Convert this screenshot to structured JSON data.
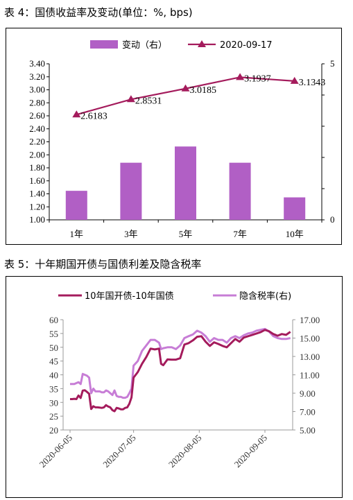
{
  "captions": {
    "table4": "表 4：国债收益率及变动(单位：%, bps)",
    "table5": "表 5：十年期国开债与国债利差及隐含税率"
  },
  "colors": {
    "bar": "#b15fc5",
    "line1": "#a41b5c",
    "line2": "#c77dd6",
    "axis": "#000000"
  },
  "chart_data": [
    {
      "type": "bar",
      "categories": [
        "1年",
        "3年",
        "5年",
        "7年",
        "10年"
      ],
      "series": [
        {
          "name": "变动（右）",
          "type": "bar",
          "axis": "right",
          "values": [
            0.93,
            1.83,
            2.35,
            1.83,
            0.72
          ]
        },
        {
          "name": "2020-09-17",
          "type": "line",
          "axis": "left",
          "values": [
            2.6183,
            2.8531,
            3.0185,
            3.1937,
            3.1343
          ],
          "labels": [
            "2.6183",
            "2.8531",
            "3.0185",
            "3.1937",
            "3.1343"
          ]
        }
      ],
      "ylim_left": [
        1.0,
        3.4
      ],
      "ylim_right": [
        0,
        5
      ],
      "yticks_left": [
        "1.00",
        "1.20",
        "1.40",
        "1.60",
        "1.80",
        "2.00",
        "2.20",
        "2.40",
        "2.60",
        "2.80",
        "3.00",
        "3.20",
        "3.40"
      ],
      "yticks_right": [
        "0",
        "5"
      ],
      "legend": {
        "position": "top",
        "items": [
          "变动（右）",
          "2020-09-17"
        ]
      }
    },
    {
      "type": "line",
      "ylim_left": [
        20,
        60
      ],
      "ylim_right": [
        5,
        17
      ],
      "yticks_left": [
        "20",
        "25",
        "30",
        "35",
        "40",
        "45",
        "50",
        "55",
        "60"
      ],
      "yticks_right": [
        "5.00",
        "7.00",
        "9.00",
        "11.00",
        "13.00",
        "15.00",
        "17.00"
      ],
      "xticks": [
        "2020-06-05",
        "2020-07-05",
        "2020-08-05",
        "2020-09-05"
      ],
      "xtick_dates": [
        "2020-06-05",
        "2020-07-05",
        "2020-08-05",
        "2020-09-05"
      ],
      "legend": {
        "position": "top",
        "items": [
          "10年国开债-10年国债",
          "隐含税率(右)"
        ]
      },
      "series": [
        {
          "name": "10年国开债-10年国债",
          "axis": "left",
          "points": [
            [
              "2020-06-05",
              31.2
            ],
            [
              "2020-06-06",
              31.2
            ],
            [
              "2020-06-07",
              31.3
            ],
            [
              "2020-06-08",
              31.2
            ],
            [
              "2020-06-09",
              32.5
            ],
            [
              "2020-06-10",
              31.6
            ],
            [
              "2020-06-11",
              34.3
            ],
            [
              "2020-06-12",
              34.4
            ],
            [
              "2020-06-13",
              33.8
            ],
            [
              "2020-06-14",
              33.1
            ],
            [
              "2020-06-15",
              27.6
            ],
            [
              "2020-06-16",
              28.6
            ],
            [
              "2020-06-17",
              28.2
            ],
            [
              "2020-06-18",
              28.2
            ],
            [
              "2020-06-19",
              28.1
            ],
            [
              "2020-06-20",
              28.0
            ],
            [
              "2020-06-21",
              28.2
            ],
            [
              "2020-06-22",
              29.0
            ],
            [
              "2020-06-23",
              28.5
            ],
            [
              "2020-06-24",
              28.2
            ],
            [
              "2020-06-25",
              27.2
            ],
            [
              "2020-06-26",
              26.8
            ],
            [
              "2020-06-27",
              28.0
            ],
            [
              "2020-06-28",
              27.8
            ],
            [
              "2020-06-29",
              27.5
            ],
            [
              "2020-06-30",
              27.5
            ],
            [
              "2020-07-01",
              28.0
            ],
            [
              "2020-07-02",
              28.2
            ],
            [
              "2020-07-03",
              29.5
            ],
            [
              "2020-07-04",
              31.8
            ],
            [
              "2020-07-05",
              39.0
            ],
            [
              "2020-07-07",
              41.0
            ],
            [
              "2020-07-09",
              44.0
            ],
            [
              "2020-07-11",
              46.5
            ],
            [
              "2020-07-13",
              49.5
            ],
            [
              "2020-07-15",
              49.2
            ],
            [
              "2020-07-17",
              49.5
            ],
            [
              "2020-07-18",
              44.0
            ],
            [
              "2020-07-19",
              43.5
            ],
            [
              "2020-07-21",
              45.6
            ],
            [
              "2020-07-23",
              45.5
            ],
            [
              "2020-07-25",
              45.5
            ],
            [
              "2020-07-27",
              46.0
            ],
            [
              "2020-07-29",
              51.0
            ],
            [
              "2020-07-31",
              51.5
            ],
            [
              "2020-08-02",
              52.5
            ],
            [
              "2020-08-04",
              53.8
            ],
            [
              "2020-08-06",
              54.0
            ],
            [
              "2020-08-08",
              52.0
            ],
            [
              "2020-08-10",
              50.5
            ],
            [
              "2020-08-12",
              51.8
            ],
            [
              "2020-08-14",
              51.2
            ],
            [
              "2020-08-16",
              50.5
            ],
            [
              "2020-08-18",
              50.0
            ],
            [
              "2020-08-20",
              51.5
            ],
            [
              "2020-08-22",
              53.0
            ],
            [
              "2020-08-24",
              52.0
            ],
            [
              "2020-08-26",
              53.5
            ],
            [
              "2020-08-28",
              54.0
            ],
            [
              "2020-08-30",
              54.5
            ],
            [
              "2020-09-01",
              55.0
            ],
            [
              "2020-09-03",
              55.5
            ],
            [
              "2020-09-05",
              56.3
            ],
            [
              "2020-09-07",
              55.8
            ],
            [
              "2020-09-09",
              54.8
            ],
            [
              "2020-09-11",
              54.2
            ],
            [
              "2020-09-13",
              54.8
            ],
            [
              "2020-09-15",
              54.5
            ],
            [
              "2020-09-17",
              55.6
            ]
          ]
        },
        {
          "name": "隐含税率(右)",
          "axis": "right",
          "points": [
            [
              "2020-06-05",
              10.0
            ],
            [
              "2020-06-06",
              10.0
            ],
            [
              "2020-06-07",
              10.0
            ],
            [
              "2020-06-08",
              10.1
            ],
            [
              "2020-06-09",
              10.2
            ],
            [
              "2020-06-10",
              10.0
            ],
            [
              "2020-06-11",
              11.1
            ],
            [
              "2020-06-12",
              11.0
            ],
            [
              "2020-06-13",
              10.9
            ],
            [
              "2020-06-14",
              10.7
            ],
            [
              "2020-06-15",
              9.0
            ],
            [
              "2020-06-16",
              9.5
            ],
            [
              "2020-06-17",
              9.2
            ],
            [
              "2020-06-18",
              9.2
            ],
            [
              "2020-06-19",
              9.2
            ],
            [
              "2020-06-20",
              9.1
            ],
            [
              "2020-06-21",
              9.1
            ],
            [
              "2020-06-22",
              9.3
            ],
            [
              "2020-06-23",
              9.2
            ],
            [
              "2020-06-24",
              9.0
            ],
            [
              "2020-06-25",
              8.8
            ],
            [
              "2020-06-26",
              9.3
            ],
            [
              "2020-06-27",
              8.7
            ],
            [
              "2020-06-28",
              8.6
            ],
            [
              "2020-06-29",
              8.6
            ],
            [
              "2020-06-30",
              8.5
            ],
            [
              "2020-07-01",
              8.5
            ],
            [
              "2020-07-02",
              8.6
            ],
            [
              "2020-07-03",
              9.0
            ],
            [
              "2020-07-04",
              9.5
            ],
            [
              "2020-07-05",
              12.0
            ],
            [
              "2020-07-07",
              12.5
            ],
            [
              "2020-07-09",
              13.6
            ],
            [
              "2020-07-11",
              14.2
            ],
            [
              "2020-07-13",
              14.8
            ],
            [
              "2020-07-15",
              14.8
            ],
            [
              "2020-07-17",
              14.5
            ],
            [
              "2020-07-18",
              13.8
            ],
            [
              "2020-07-19",
              13.9
            ],
            [
              "2020-07-21",
              14.0
            ],
            [
              "2020-07-23",
              14.0
            ],
            [
              "2020-07-25",
              13.8
            ],
            [
              "2020-07-27",
              14.2
            ],
            [
              "2020-07-29",
              15.0
            ],
            [
              "2020-07-31",
              15.2
            ],
            [
              "2020-08-02",
              15.4
            ],
            [
              "2020-08-04",
              15.8
            ],
            [
              "2020-08-06",
              15.6
            ],
            [
              "2020-08-08",
              15.2
            ],
            [
              "2020-08-10",
              14.6
            ],
            [
              "2020-08-12",
              15.0
            ],
            [
              "2020-08-14",
              14.8
            ],
            [
              "2020-08-16",
              14.8
            ],
            [
              "2020-08-18",
              14.5
            ],
            [
              "2020-08-20",
              15.0
            ],
            [
              "2020-08-22",
              15.2
            ],
            [
              "2020-08-24",
              15.0
            ],
            [
              "2020-08-26",
              15.3
            ],
            [
              "2020-08-28",
              15.5
            ],
            [
              "2020-08-30",
              15.6
            ],
            [
              "2020-09-01",
              15.8
            ],
            [
              "2020-09-03",
              15.9
            ],
            [
              "2020-09-05",
              16.0
            ],
            [
              "2020-09-07",
              15.7
            ],
            [
              "2020-09-09",
              15.2
            ],
            [
              "2020-09-11",
              15.0
            ],
            [
              "2020-09-13",
              14.9
            ],
            [
              "2020-09-15",
              14.9
            ],
            [
              "2020-09-17",
              15.0
            ]
          ]
        }
      ]
    }
  ]
}
